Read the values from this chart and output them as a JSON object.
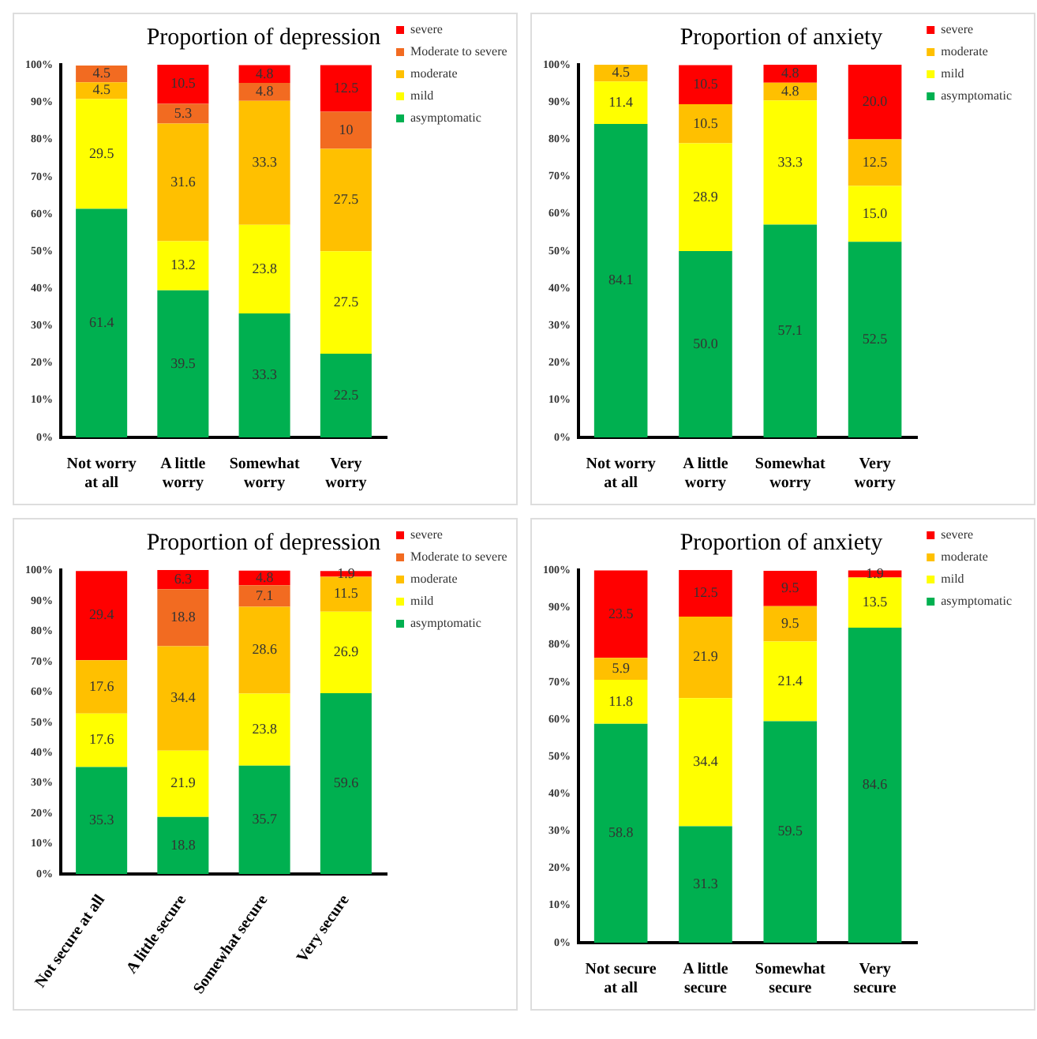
{
  "chart_data": [
    {
      "type": "bar",
      "title": "Proportion of depression",
      "stacked": true,
      "legend": "right",
      "grid": false,
      "categories": [
        "Not worry at all",
        "A little worry",
        "Somewhat worry",
        "Very worry"
      ],
      "ylim": [
        0,
        100.1
      ],
      "yticks": [
        {
          "value": 0,
          "label": "0%"
        },
        {
          "value": 10,
          "label": "10%"
        },
        {
          "value": 20,
          "label": "20%"
        },
        {
          "value": 30,
          "label": "30%"
        },
        {
          "value": 40,
          "label": "40%"
        },
        {
          "value": 50,
          "label": "50%"
        },
        {
          "value": 60,
          "label": "60%"
        },
        {
          "value": 70,
          "label": "70%"
        },
        {
          "value": 80,
          "label": "80%"
        },
        {
          "value": 90,
          "label": "90%"
        },
        {
          "value": 100,
          "label": "100%"
        }
      ],
      "series": [
        {
          "name": "asymptomatic",
          "color": "#00b050",
          "values": [
            61.4,
            39.5,
            33.3,
            22.5
          ],
          "value_labels": [
            "61.4",
            "39.5",
            "33.3",
            "22.5"
          ]
        },
        {
          "name": "mild",
          "color": "#ffff00",
          "values": [
            29.5,
            13.2,
            23.8,
            27.5
          ],
          "value_labels": [
            "29.5",
            "13.2",
            "23.8",
            "27.5"
          ]
        },
        {
          "name": "moderate",
          "color": "#ffc000",
          "values": [
            4.5,
            31.6,
            33.3,
            27.5
          ],
          "value_labels": [
            "4.5",
            "31.6",
            "33.3",
            "27.5"
          ]
        },
        {
          "name": "Moderate to severe",
          "color": "#f26b21",
          "values": [
            4.5,
            5.3,
            4.8,
            10
          ],
          "value_labels": [
            "4.5",
            "5.3",
            "4.8",
            "10"
          ]
        },
        {
          "name": "severe",
          "color": "#ff0000",
          "values": [
            null,
            10.5,
            4.8,
            12.5
          ],
          "value_labels": [
            null,
            "10.5",
            "4.8",
            "12.5"
          ]
        }
      ]
    },
    {
      "type": "bar",
      "title": "Proportion of anxiety",
      "stacked": true,
      "legend": "right",
      "grid": false,
      "categories": [
        "Not worry at all",
        "A little worry",
        "Somewhat worry",
        "Very worry"
      ],
      "ylim": [
        0,
        100
      ],
      "yticks": [
        {
          "value": 0,
          "label": "0%"
        },
        {
          "value": 10,
          "label": "10%"
        },
        {
          "value": 20,
          "label": "20%"
        },
        {
          "value": 30,
          "label": "30%"
        },
        {
          "value": 40,
          "label": "40%"
        },
        {
          "value": 50,
          "label": "50%"
        },
        {
          "value": 60,
          "label": "60%"
        },
        {
          "value": 70,
          "label": "70%"
        },
        {
          "value": 80,
          "label": "80%"
        },
        {
          "value": 90,
          "label": "90%"
        },
        {
          "value": 100,
          "label": "100%"
        }
      ],
      "series": [
        {
          "name": "asymptomatic",
          "color": "#00b050",
          "values": [
            84.1,
            50.0,
            57.1,
            52.5
          ],
          "value_labels": [
            "84.1",
            "50.0",
            "57.1",
            "52.5"
          ]
        },
        {
          "name": "mild",
          "color": "#ffff00",
          "values": [
            11.4,
            28.9,
            33.3,
            15.0
          ],
          "value_labels": [
            "11.4",
            "28.9",
            "33.3",
            "15.0"
          ]
        },
        {
          "name": "moderate",
          "color": "#ffc000",
          "values": [
            4.5,
            10.5,
            4.8,
            12.5
          ],
          "value_labels": [
            "4.5",
            "10.5",
            "4.8",
            "12.5"
          ]
        },
        {
          "name": "severe",
          "color": "#ff0000",
          "values": [
            null,
            10.5,
            4.8,
            20.0
          ],
          "value_labels": [
            null,
            "10.5",
            "4.8",
            "20.0"
          ]
        }
      ]
    },
    {
      "type": "bar",
      "title": "Proportion of depression",
      "stacked": true,
      "legend": "right",
      "grid": false,
      "categories": [
        "Not secure at all",
        "A little secure",
        "Somewhat secure",
        "Very secure"
      ],
      "ylim": [
        0,
        100.2
      ],
      "yticks": [
        {
          "value": 0,
          "label": "0%"
        },
        {
          "value": 10,
          "label": "10%"
        },
        {
          "value": 20,
          "label": "20%"
        },
        {
          "value": 30,
          "label": "30%"
        },
        {
          "value": 40,
          "label": "40%"
        },
        {
          "value": 50,
          "label": "50%"
        },
        {
          "value": 60,
          "label": "60%"
        },
        {
          "value": 70,
          "label": "70%"
        },
        {
          "value": 80,
          "label": "80%"
        },
        {
          "value": 90,
          "label": "90%"
        },
        {
          "value": 100,
          "label": "100%"
        }
      ],
      "series": [
        {
          "name": "asymptomatic",
          "color": "#00b050",
          "values": [
            35.3,
            18.8,
            35.7,
            59.6
          ],
          "value_labels": [
            "35.3",
            "18.8",
            "35.7",
            "59.6"
          ]
        },
        {
          "name": "mild",
          "color": "#ffff00",
          "values": [
            17.6,
            21.9,
            23.8,
            26.9
          ],
          "value_labels": [
            "17.6",
            "21.9",
            "23.8",
            "26.9"
          ]
        },
        {
          "name": "moderate",
          "color": "#ffc000",
          "values": [
            17.6,
            34.4,
            28.6,
            11.5
          ],
          "value_labels": [
            "17.6",
            "34.4",
            "28.6",
            "11.5"
          ]
        },
        {
          "name": "Moderate to severe",
          "color": "#f26b21",
          "values": [
            null,
            18.8,
            7.1,
            null
          ],
          "value_labels": [
            null,
            "18.8",
            "7.1",
            null
          ]
        },
        {
          "name": "severe",
          "color": "#ff0000",
          "values": [
            29.4,
            6.3,
            4.8,
            1.9
          ],
          "value_labels": [
            "29.4",
            "6.3",
            "4.8",
            "1.9"
          ]
        }
      ]
    },
    {
      "type": "bar",
      "title": "Proportion of anxiety",
      "stacked": true,
      "legend": "right",
      "grid": false,
      "categories": [
        "Not secure at all",
        "A little secure",
        "Somewhat secure",
        "Very secure"
      ],
      "ylim": [
        0,
        100.1
      ],
      "yticks": [
        {
          "value": 0,
          "label": "0%"
        },
        {
          "value": 10,
          "label": "10%"
        },
        {
          "value": 20,
          "label": "20%"
        },
        {
          "value": 30,
          "label": "30%"
        },
        {
          "value": 40,
          "label": "40%"
        },
        {
          "value": 50,
          "label": "50%"
        },
        {
          "value": 60,
          "label": "60%"
        },
        {
          "value": 70,
          "label": "70%"
        },
        {
          "value": 80,
          "label": "80%"
        },
        {
          "value": 90,
          "label": "90%"
        },
        {
          "value": 100,
          "label": "100%"
        }
      ],
      "series": [
        {
          "name": "asymptomatic",
          "color": "#00b050",
          "values": [
            58.8,
            31.3,
            59.5,
            84.6
          ],
          "value_labels": [
            "58.8",
            "31.3",
            "59.5",
            "84.6"
          ]
        },
        {
          "name": "mild",
          "color": "#ffff00",
          "values": [
            11.8,
            34.4,
            21.4,
            13.5
          ],
          "value_labels": [
            "11.8",
            "34.4",
            "21.4",
            "13.5"
          ]
        },
        {
          "name": "moderate",
          "color": "#ffc000",
          "values": [
            5.9,
            21.9,
            9.5,
            null
          ],
          "value_labels": [
            "5.9",
            "21.9",
            "9.5",
            null
          ]
        },
        {
          "name": "severe",
          "color": "#ff0000",
          "values": [
            23.5,
            12.5,
            9.5,
            1.9
          ],
          "value_labels": [
            "23.5",
            "12.5",
            "9.5",
            "1.9"
          ]
        }
      ]
    }
  ]
}
